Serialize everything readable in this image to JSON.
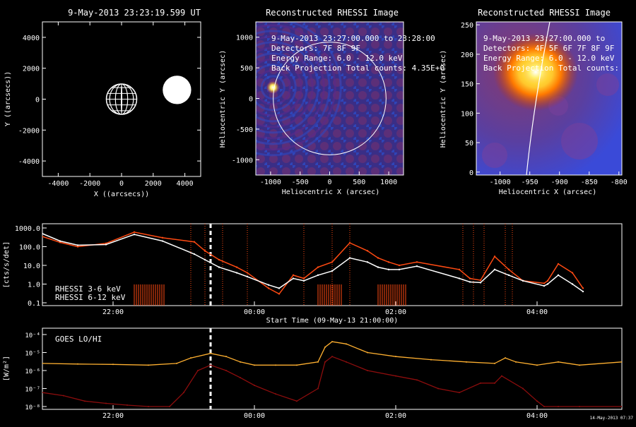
{
  "panel1": {
    "title": "9-May-2013 23:23:19.599 UT",
    "xlabel": "X ((arcsecs))",
    "ylabel": "Y ((arcsecs))",
    "xticks": [
      -4000,
      -2000,
      0,
      2000,
      4000
    ],
    "yticks": [
      -4000,
      -2000,
      0,
      2000,
      4000
    ]
  },
  "panel2": {
    "title": "Reconstructed RHESSI Image",
    "info": [
      "9-May-2013 23:27:00.000 to 23:28:00",
      "Detectors: 7F 8F 9F",
      "Energy Range: 6.0 - 12.0 keV",
      "Back Projection     Total counts: 4.35E+0"
    ],
    "xlabel": "Heliocentric X (arcsec)",
    "ylabel": "Heliocentric Y (arcsec)",
    "xticks": [
      -1000,
      -500,
      0,
      500,
      1000
    ],
    "yticks": [
      -1000,
      -500,
      0,
      500,
      1000
    ]
  },
  "panel3": {
    "title": "Reconstructed RHESSI Image",
    "info": [
      "9-May-2013 23:27:00.000 to",
      "Detectors: 4F 5F 6F 7F 8F 9F",
      "Energy Range: 6.0 - 12.0 keV",
      "Back Projection     Total counts:"
    ],
    "xlabel": "Heliocentric X (arcsec)",
    "ylabel": "Heliocentric Y (arcsec)",
    "xticks": [
      -1000,
      -950,
      -900,
      -850,
      -800
    ],
    "yticks": [
      0,
      50,
      100,
      150,
      200,
      250
    ]
  },
  "rhessi": {
    "ylabel": "[cts/s/det]",
    "yticks": [
      "1000.0",
      "100.0",
      "10.0",
      "1.0",
      "0.1"
    ],
    "xticks": [
      "22:00",
      "00:00",
      "02:00",
      "04:00"
    ],
    "xlabel": "Start Time (09-May-13 21:00:00)",
    "legend": [
      {
        "label": "RHESSI  3-6 keV",
        "color": "#ffffff"
      },
      {
        "label": "RHESSI 6-12 keV",
        "color": "#ff4a12"
      }
    ]
  },
  "goes": {
    "label": "GOES LO/HI",
    "ylabel": "[W/m²]",
    "yticks": [
      "10⁻⁴",
      "10⁻⁵",
      "10⁻⁶",
      "10⁻⁷",
      "10⁻⁸"
    ],
    "xticks": [
      "22:00",
      "00:00",
      "02:00",
      "04:00"
    ],
    "stamp": "14-May-2013 07:37",
    "colors": {
      "lo": "#ffb030",
      "hi": "#8c0d0d"
    }
  },
  "chart_data": [
    {
      "type": "scatter",
      "title": "9-May-2013 23:23:19.599 UT",
      "xlabel": "X ((arcsecs))",
      "ylabel": "Y ((arcsecs))",
      "xlim": [
        -5000,
        5000
      ],
      "ylim": [
        -5000,
        5000
      ],
      "objects": [
        {
          "name": "sun-grid",
          "x": 0,
          "y": 0,
          "r": 960
        },
        {
          "name": "white-disk",
          "x": 3500,
          "y": 600,
          "r": 900
        }
      ]
    },
    {
      "type": "heatmap",
      "title": "Reconstructed RHESSI Image",
      "xlabel": "Heliocentric X (arcsec)",
      "ylabel": "Heliocentric Y (arcsec)",
      "xlim": [
        -1250,
        1250
      ],
      "ylim": [
        -1250,
        1250
      ],
      "source": {
        "x": -960,
        "y": 180
      },
      "limb_radius": 955
    },
    {
      "type": "heatmap",
      "title": "Reconstructed RHESSI Image",
      "xlabel": "Heliocentric X (arcsec)",
      "ylabel": "Heliocentric Y (arcsec)",
      "xlim": [
        -1040,
        -795
      ],
      "ylim": [
        -5,
        255
      ],
      "source": {
        "x": -940,
        "y": 170
      }
    },
    {
      "type": "line",
      "title": "",
      "xlabel": "Start Time (09-May-13 21:00:00)",
      "ylabel": "[cts/s/det]",
      "xlim": [
        0,
        8.2
      ],
      "ylim": [
        0.1,
        1000
      ],
      "yscale": "log",
      "xticks": [
        1,
        3,
        5,
        7
      ],
      "xticklabels": [
        "22:00",
        "00:00",
        "02:00",
        "04:00"
      ],
      "series": [
        {
          "name": "RHESSI  3-6 keV",
          "x": [
            0.0,
            0.25,
            0.5,
            0.9,
            1.3,
            1.7,
            2.15,
            2.3,
            2.5,
            2.75,
            2.9,
            3.2,
            3.35,
            3.55,
            3.7,
            3.9,
            4.1,
            4.35,
            4.6,
            4.75,
            4.9,
            5.05,
            5.3,
            5.9,
            6.05,
            6.2,
            6.4,
            6.6,
            6.8,
            7.1,
            7.15,
            7.3,
            7.5,
            7.65
          ],
          "y": [
            500,
            200,
            120,
            130,
            450,
            200,
            40,
            20,
            8,
            4,
            2.5,
            0.9,
            0.6,
            2,
            1.5,
            3,
            5,
            25,
            15,
            8,
            6,
            6,
            9,
            2,
            1.3,
            1.2,
            6,
            3,
            1.5,
            0.8,
            1,
            3,
            1,
            0.4
          ]
        },
        {
          "name": "RHESSI 6-12 keV",
          "x": [
            0.0,
            0.25,
            0.5,
            0.9,
            1.3,
            1.7,
            2.15,
            2.3,
            2.5,
            2.75,
            2.9,
            3.2,
            3.35,
            3.55,
            3.7,
            3.9,
            4.1,
            4.35,
            4.6,
            4.75,
            4.9,
            5.05,
            5.3,
            5.9,
            6.05,
            6.2,
            6.4,
            6.6,
            6.8,
            7.1,
            7.15,
            7.3,
            7.5,
            7.65
          ],
          "y": [
            350,
            170,
            100,
            150,
            600,
            300,
            180,
            60,
            20,
            8,
            4,
            0.6,
            0.3,
            3,
            2,
            8,
            15,
            160,
            60,
            25,
            15,
            10,
            15,
            6,
            2,
            1.6,
            30,
            6,
            1.5,
            1.1,
            1.5,
            12,
            4,
            0.6
          ]
        }
      ],
      "markers": {
        "current_time": 2.38,
        "dotted": [
          2.1,
          2.3,
          2.55,
          2.9,
          3.7,
          4.1,
          4.35,
          5.95,
          6.1,
          6.25,
          6.55,
          6.65
        ]
      }
    },
    {
      "type": "line",
      "title": "",
      "xlabel": "",
      "ylabel": "[W/m²]",
      "xlim": [
        0,
        8.2
      ],
      "ylim": [
        1e-08,
        0.0001
      ],
      "yscale": "log",
      "xticks": [
        1,
        3,
        5,
        7
      ],
      "xticklabels": [
        "22:00",
        "00:00",
        "02:00",
        "04:00"
      ],
      "series": [
        {
          "name": "GOES LO",
          "x": [
            0.0,
            0.5,
            1.0,
            1.5,
            1.9,
            2.1,
            2.38,
            2.6,
            2.8,
            3.0,
            3.3,
            3.6,
            3.9,
            4.0,
            4.1,
            4.3,
            4.6,
            5.0,
            5.5,
            6.0,
            6.4,
            6.55,
            6.7,
            7.0,
            7.3,
            7.6,
            8.2
          ],
          "y": [
            2.5e-06,
            2.3e-06,
            2.2e-06,
            2e-06,
            2.5e-06,
            5e-06,
            9e-06,
            6e-06,
            3e-06,
            2e-06,
            2e-06,
            2e-06,
            3e-06,
            2e-05,
            4e-05,
            3e-05,
            1e-05,
            6e-06,
            4e-06,
            3e-06,
            2.5e-06,
            5e-06,
            3e-06,
            2e-06,
            3e-06,
            2e-06,
            3e-06
          ]
        },
        {
          "name": "GOES HI",
          "x": [
            0.0,
            0.3,
            0.6,
            0.9,
            1.2,
            1.5,
            1.8,
            2.0,
            2.2,
            2.38,
            2.6,
            2.8,
            3.0,
            3.3,
            3.6,
            3.9,
            4.0,
            4.1,
            4.3,
            4.6,
            5.0,
            5.3,
            5.6,
            5.9,
            6.2,
            6.4,
            6.5,
            6.8,
            7.0,
            7.1,
            7.3,
            7.6,
            8.2
          ],
          "y": [
            6e-08,
            4e-08,
            2e-08,
            1.5e-08,
            1.2e-08,
            1e-08,
            1e-08,
            6e-08,
            1e-06,
            2e-06,
            1e-06,
            4e-07,
            1.5e-07,
            5e-08,
            2e-08,
            1e-07,
            3e-06,
            6e-06,
            3e-06,
            1e-06,
            5e-07,
            3e-07,
            1e-07,
            6e-08,
            2e-07,
            2e-07,
            5e-07,
            1e-07,
            2e-08,
            1e-08,
            1e-08,
            1e-08,
            1e-08
          ]
        }
      ],
      "markers": {
        "current_time": 2.38
      }
    }
  ]
}
